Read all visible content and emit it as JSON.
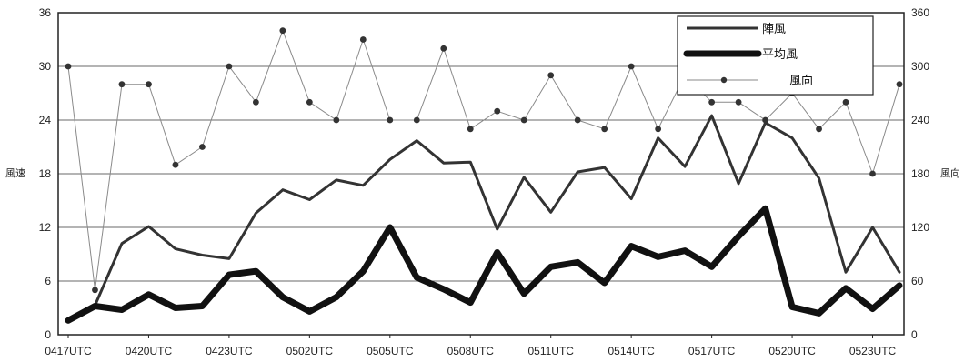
{
  "chart_data": {
    "type": "line",
    "title": "",
    "ylabel": "風速",
    "y2label": "風向",
    "ylim": [
      0,
      36
    ],
    "y2lim": [
      0,
      360
    ],
    "yticks": [
      0,
      6,
      12,
      18,
      24,
      30,
      36
    ],
    "y2ticks": [
      0,
      60,
      120,
      180,
      240,
      300,
      360
    ],
    "grid": "horizontal",
    "legend_position": "top-right",
    "x": [
      0,
      1,
      2,
      3,
      4,
      5,
      6,
      7,
      8,
      9,
      10,
      11,
      12,
      13,
      14,
      15,
      16,
      17,
      18,
      19,
      20,
      21,
      22,
      23,
      24,
      25,
      26,
      27,
      28,
      29,
      30,
      31
    ],
    "xtick_labels": [
      {
        "index": 0,
        "label": "0417UTC"
      },
      {
        "index": 3,
        "label": "0420UTC"
      },
      {
        "index": 6,
        "label": "0423UTC"
      },
      {
        "index": 9,
        "label": "0502UTC"
      },
      {
        "index": 12,
        "label": "0505UTC"
      },
      {
        "index": 15,
        "label": "0508UTC"
      },
      {
        "index": 18,
        "label": "0511UTC"
      },
      {
        "index": 21,
        "label": "0514UTC"
      },
      {
        "index": 24,
        "label": "0517UTC"
      },
      {
        "index": 27,
        "label": "0520UTC"
      },
      {
        "index": 30,
        "label": "0523UTC"
      }
    ],
    "series": [
      {
        "name": "陣風",
        "axis": "left",
        "color": "#333333",
        "values": [
          1.8,
          3.3,
          10.2,
          12.1,
          9.6,
          8.9,
          8.5,
          13.6,
          16.2,
          15.1,
          17.3,
          16.7,
          19.6,
          21.7,
          19.2,
          19.3,
          11.8,
          17.6,
          13.7,
          18.2,
          18.7,
          15.2,
          22.0,
          18.8,
          24.5,
          16.9,
          23.7,
          22.0,
          17.5,
          7.0,
          12.0,
          7.0
        ]
      },
      {
        "name": "平均風",
        "axis": "left",
        "color": "#111111",
        "values": [
          1.6,
          3.2,
          2.8,
          4.5,
          3.0,
          3.2,
          6.7,
          7.1,
          4.2,
          2.6,
          4.2,
          7.1,
          12.0,
          6.4,
          5.1,
          3.6,
          9.2,
          4.6,
          7.6,
          8.1,
          5.8,
          9.9,
          8.7,
          9.4,
          7.6,
          11.0,
          14.1,
          3.1,
          2.4,
          5.2,
          2.9,
          5.5
        ]
      },
      {
        "name": "風向",
        "axis": "right",
        "color": "#555555",
        "values": [
          300,
          50,
          280,
          280,
          190,
          210,
          300,
          260,
          340,
          260,
          240,
          330,
          240,
          240,
          320,
          230,
          250,
          240,
          290,
          240,
          230,
          300,
          230,
          290,
          260,
          260,
          240,
          270,
          230,
          260,
          180,
          280
        ]
      }
    ],
    "legend": [
      "陣風",
      "平均風",
      "風向"
    ]
  }
}
